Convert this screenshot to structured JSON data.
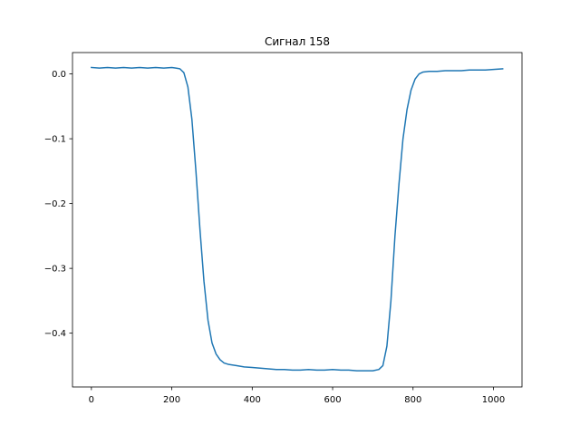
{
  "chart_data": {
    "type": "line",
    "title": "Сигнал 158",
    "xlabel": "",
    "ylabel": "",
    "xlim": [
      -47,
      1071
    ],
    "ylim": [
      -0.483,
      0.033
    ],
    "grid": false,
    "legend": "none",
    "xticks": [
      0,
      200,
      400,
      600,
      800,
      1000
    ],
    "xtick_labels": [
      "0",
      "200",
      "400",
      "600",
      "800",
      "1000"
    ],
    "yticks": [
      0.0,
      -0.1,
      -0.2,
      -0.3,
      -0.4
    ],
    "ytick_labels": [
      "0.0",
      "−0.1",
      "−0.2",
      "−0.3",
      "−0.4"
    ],
    "series": [
      {
        "color": "#1f77b4",
        "x": [
          0,
          20,
          40,
          60,
          80,
          100,
          120,
          140,
          160,
          180,
          200,
          210,
          220,
          230,
          240,
          250,
          260,
          270,
          280,
          290,
          300,
          310,
          320,
          330,
          340,
          360,
          380,
          400,
          420,
          440,
          460,
          480,
          500,
          520,
          540,
          560,
          580,
          600,
          620,
          640,
          660,
          680,
          700,
          715,
          725,
          735,
          745,
          755,
          765,
          775,
          785,
          795,
          805,
          815,
          825,
          840,
          860,
          880,
          900,
          920,
          940,
          960,
          980,
          1000,
          1023
        ],
        "y": [
          0.01,
          0.009,
          0.01,
          0.009,
          0.01,
          0.009,
          0.01,
          0.009,
          0.01,
          0.009,
          0.01,
          0.009,
          0.008,
          0.002,
          -0.02,
          -0.07,
          -0.15,
          -0.24,
          -0.32,
          -0.38,
          -0.415,
          -0.432,
          -0.441,
          -0.446,
          -0.448,
          -0.45,
          -0.452,
          -0.453,
          -0.454,
          -0.455,
          -0.456,
          -0.456,
          -0.457,
          -0.457,
          -0.456,
          -0.457,
          -0.457,
          -0.456,
          -0.457,
          -0.457,
          -0.458,
          -0.458,
          -0.458,
          -0.456,
          -0.45,
          -0.42,
          -0.35,
          -0.25,
          -0.17,
          -0.1,
          -0.055,
          -0.025,
          -0.008,
          0.0,
          0.003,
          0.004,
          0.004,
          0.005,
          0.005,
          0.005,
          0.006,
          0.006,
          0.006,
          0.007,
          0.008
        ]
      }
    ]
  }
}
